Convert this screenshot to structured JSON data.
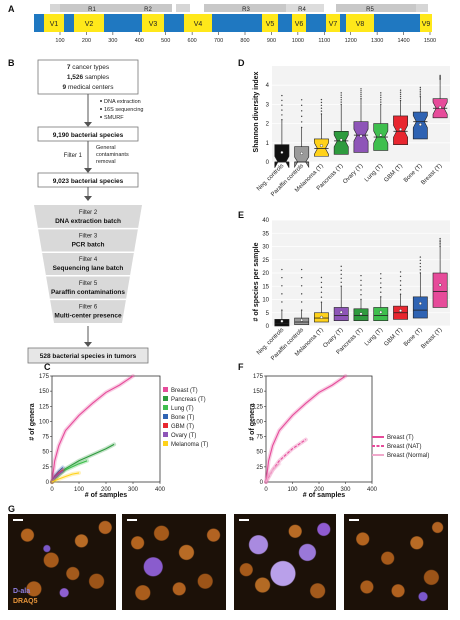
{
  "panel_letters": [
    "A",
    "B",
    "C",
    "D",
    "E",
    "F",
    "G"
  ],
  "panelA": {
    "regions": [
      "R1",
      "R2",
      "R3",
      "R4",
      "R5"
    ],
    "variable": [
      "V1",
      "V2",
      "V3",
      "V4",
      "V5",
      "V6",
      "V7",
      "V8",
      "V9"
    ],
    "ticks": [
      "100",
      "200",
      "300",
      "400",
      "500",
      "600",
      "700",
      "800",
      "900",
      "1000",
      "1100",
      "1200",
      "1300",
      "1400",
      "1500"
    ]
  },
  "panelB": {
    "box1": {
      "line1_num": "7",
      "line1": "cancer types",
      "line2_num": "1,526",
      "line2": "samples",
      "line3_num": "9",
      "line3": "medical centers"
    },
    "bullets": [
      "DNA extraction",
      "16S sequencing",
      "SMURF"
    ],
    "box2": "9,190 bacterial species",
    "filter1_label": "Filter 1",
    "filter1_desc": [
      "General",
      "contaminants",
      "removal"
    ],
    "box3": "9,023 bacterial species",
    "filters": [
      {
        "name": "Filter 2",
        "desc": "DNA extraction batch"
      },
      {
        "name": "Filter 3",
        "desc": "PCR batch"
      },
      {
        "name": "Filter 4",
        "desc": "Sequencing lane batch"
      },
      {
        "name": "Filter 5",
        "desc": "Paraffin contaminations"
      },
      {
        "name": "Filter 6",
        "desc": "Multi-center presence"
      }
    ],
    "final": "528 bacterial species in tumors"
  },
  "panelD": {
    "ylabel": "Shannon diversity index",
    "categories": [
      "Neg. controls",
      "Paraffin controls",
      "Melanoma (T)",
      "Pancreas (T)",
      "Ovary (T)",
      "Lung (T)",
      "GBM (T)",
      "Bone (T)",
      "Breast (T)"
    ],
    "colors": [
      "#111111",
      "#9a9a9a",
      "#ffd21a",
      "#2e9b3e",
      "#8e55b8",
      "#3fbf4e",
      "#e8262f",
      "#2f63b3",
      "#e64b9a"
    ],
    "yticks": [
      "0",
      "1",
      "2",
      "3",
      "4"
    ]
  },
  "panelE": {
    "ylabel": "# of species per sample",
    "yticks": [
      "0",
      "5",
      "10",
      "15",
      "20",
      "25",
      "30",
      "35",
      "40"
    ]
  },
  "panelC": {
    "ylabel": "# of genera",
    "xlabel": "# of samples",
    "xticks": [
      "0",
      "100",
      "200",
      "300",
      "400"
    ],
    "yticks": [
      "0",
      "25",
      "50",
      "75",
      "100",
      "125",
      "150",
      "175"
    ],
    "legend": [
      {
        "label": "Breast (T)",
        "color": "#e64b9a"
      },
      {
        "label": "Pancreas (T)",
        "color": "#2e9b3e"
      },
      {
        "label": "Lung (T)",
        "color": "#3fbf4e"
      },
      {
        "label": "Bone (T)",
        "color": "#2f63b3"
      },
      {
        "label": "GBM (T)",
        "color": "#e8262f"
      },
      {
        "label": "Ovary (T)",
        "color": "#8e55b8"
      },
      {
        "label": "Melanoma (T)",
        "color": "#ffd21a"
      }
    ]
  },
  "panelF": {
    "ylabel": "# of genera",
    "xlabel": "# of samples",
    "xticks": [
      "0",
      "100",
      "200",
      "300",
      "400"
    ],
    "yticks": [
      "0",
      "25",
      "50",
      "75",
      "100",
      "125",
      "150",
      "175"
    ],
    "legend": [
      "Breast (T)",
      "Breast (NAT)",
      "Breast (Normal)"
    ]
  },
  "panelG": {
    "label1": "D-ala",
    "label2": "DRAQ5",
    "label1_color": "#8f7fe0",
    "label2_color": "#e8953a"
  },
  "chart_data": [
    {
      "type": "box",
      "panel": "D",
      "ylabel": "Shannon diversity index",
      "ylim": [
        0,
        5
      ],
      "categories": [
        "Neg. controls",
        "Paraffin controls",
        "Melanoma (T)",
        "Pancreas (T)",
        "Ovary (T)",
        "Lung (T)",
        "GBM (T)",
        "Bone (T)",
        "Breast (T)"
      ],
      "q1": [
        0,
        0,
        0.3,
        0.4,
        0.5,
        0.6,
        0.9,
        1.2,
        2.3
      ],
      "median": [
        0,
        0,
        0.7,
        1.1,
        1.4,
        1.3,
        1.6,
        2.1,
        2.8
      ],
      "q3": [
        0.9,
        0.8,
        1.2,
        1.6,
        2.1,
        2.0,
        2.4,
        2.6,
        3.3
      ],
      "whisker_high": [
        2.2,
        1.8,
        2.5,
        3.0,
        3.3,
        3.0,
        3.2,
        3.4,
        4.3
      ],
      "mean": [
        0.5,
        0.45,
        0.85,
        1.15,
        1.35,
        1.4,
        1.7,
        1.95,
        2.85
      ]
    },
    {
      "type": "box",
      "panel": "E",
      "ylabel": "# of species per sample",
      "ylim": [
        0,
        40
      ],
      "categories": [
        "Neg. controls",
        "Paraffin controls",
        "Melanoma (T)",
        "Ovary (T)",
        "Pancreas (T)",
        "Lung (T)",
        "GBM (T)",
        "Bone (T)",
        "Breast (T)"
      ],
      "q1": [
        0,
        0.5,
        1.5,
        2,
        2,
        2,
        2.5,
        3,
        7
      ],
      "median": [
        1,
        1.5,
        3,
        4,
        4,
        4,
        5,
        6,
        13
      ],
      "q3": [
        2.5,
        3,
        5,
        7,
        6.5,
        7,
        7.5,
        11,
        20
      ],
      "whisker_high": [
        6,
        6,
        9,
        15,
        10,
        11,
        12,
        20,
        30
      ],
      "mean": [
        1.8,
        2.2,
        3.3,
        5.2,
        4.6,
        5.2,
        5.8,
        8.5,
        15.5
      ]
    },
    {
      "type": "line",
      "panel": "C",
      "xlabel": "# of samples",
      "ylabel": "# of genera",
      "xlim": [
        0,
        400
      ],
      "ylim": [
        0,
        175
      ],
      "series": [
        {
          "name": "Breast (T)",
          "x": [
            0,
            10,
            25,
            50,
            100,
            150,
            200,
            250,
            300
          ],
          "y": [
            0,
            35,
            60,
            85,
            110,
            130,
            148,
            160,
            175
          ]
        },
        {
          "name": "Pancreas (T)",
          "x": [
            0,
            25,
            50,
            100,
            150,
            200,
            230
          ],
          "y": [
            0,
            12,
            22,
            35,
            45,
            55,
            62
          ]
        },
        {
          "name": "Lung (T)",
          "x": [
            0,
            25,
            50,
            100,
            130
          ],
          "y": [
            0,
            12,
            20,
            30,
            35
          ]
        },
        {
          "name": "Bone (T)",
          "x": [
            0,
            10,
            25,
            40
          ],
          "y": [
            0,
            10,
            18,
            24
          ]
        },
        {
          "name": "GBM (T)",
          "x": [
            0,
            10,
            25,
            40
          ],
          "y": [
            0,
            8,
            15,
            20
          ]
        },
        {
          "name": "Ovary (T)",
          "x": [
            0,
            10,
            25,
            40
          ],
          "y": [
            0,
            7,
            13,
            18
          ]
        },
        {
          "name": "Melanoma (T)",
          "x": [
            0,
            25,
            50,
            75,
            100
          ],
          "y": [
            0,
            5,
            9,
            13,
            15
          ]
        }
      ]
    },
    {
      "type": "line",
      "panel": "F",
      "xlabel": "# of samples",
      "ylabel": "# of genera",
      "xlim": [
        0,
        400
      ],
      "ylim": [
        0,
        175
      ],
      "series": [
        {
          "name": "Breast (T)",
          "x": [
            0,
            10,
            25,
            50,
            100,
            150,
            200,
            250,
            300
          ],
          "y": [
            0,
            35,
            60,
            85,
            110,
            130,
            148,
            160,
            175
          ]
        },
        {
          "name": "Breast (NAT)",
          "x": [
            0,
            25,
            50,
            100,
            150
          ],
          "y": [
            0,
            20,
            35,
            55,
            70
          ]
        },
        {
          "name": "Breast (Normal)",
          "x": [
            0,
            10,
            25,
            50
          ],
          "y": [
            0,
            10,
            20,
            30
          ]
        }
      ]
    }
  ]
}
